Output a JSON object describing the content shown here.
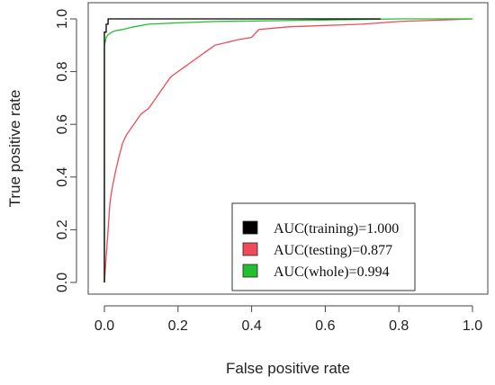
{
  "chart_data": {
    "type": "line",
    "title": "",
    "xlabel": "False positive rate",
    "ylabel": "True positive rate",
    "xlim": [
      0,
      1
    ],
    "ylim": [
      0,
      1
    ],
    "xticks": [
      "0.0",
      "0.2",
      "0.4",
      "0.6",
      "0.8",
      "1.0"
    ],
    "yticks": [
      "0.0",
      "0.2",
      "0.4",
      "0.6",
      "0.8",
      "1.0"
    ],
    "grid": false,
    "legend_position": "bottom-right",
    "series": [
      {
        "name": "AUC(training)=1.000",
        "color": "#000000",
        "x": [
          0,
          0,
          0,
          0.005,
          0.005,
          0.01,
          0.01,
          0.75
        ],
        "y": [
          0,
          0.9,
          0.95,
          0.95,
          0.98,
          0.98,
          1.0,
          1.0
        ]
      },
      {
        "name": "AUC(testing)=0.877",
        "color": "#f04a5a",
        "x": [
          0,
          0.005,
          0.01,
          0.015,
          0.02,
          0.03,
          0.04,
          0.05,
          0.06,
          0.07,
          0.08,
          0.09,
          0.1,
          0.12,
          0.14,
          0.16,
          0.18,
          0.2,
          0.22,
          0.24,
          0.26,
          0.28,
          0.3,
          0.33,
          0.36,
          0.4,
          0.42,
          0.5,
          0.6,
          0.7,
          0.8,
          0.9,
          1.0
        ],
        "y": [
          0,
          0.1,
          0.2,
          0.3,
          0.35,
          0.42,
          0.48,
          0.53,
          0.56,
          0.58,
          0.6,
          0.62,
          0.64,
          0.66,
          0.7,
          0.74,
          0.78,
          0.8,
          0.82,
          0.84,
          0.86,
          0.88,
          0.9,
          0.91,
          0.92,
          0.93,
          0.96,
          0.97,
          0.975,
          0.98,
          0.99,
          0.995,
          1.0
        ]
      },
      {
        "name": "AUC(whole)=0.994",
        "color": "#22c030",
        "x": [
          0,
          0,
          0.005,
          0.01,
          0.02,
          0.03,
          0.05,
          0.08,
          0.12,
          0.2,
          0.3,
          0.45,
          0.6,
          0.8,
          1.0
        ],
        "y": [
          0,
          0.9,
          0.93,
          0.94,
          0.95,
          0.955,
          0.96,
          0.97,
          0.98,
          0.985,
          0.99,
          0.993,
          0.996,
          1.0,
          1.0
        ]
      }
    ]
  }
}
